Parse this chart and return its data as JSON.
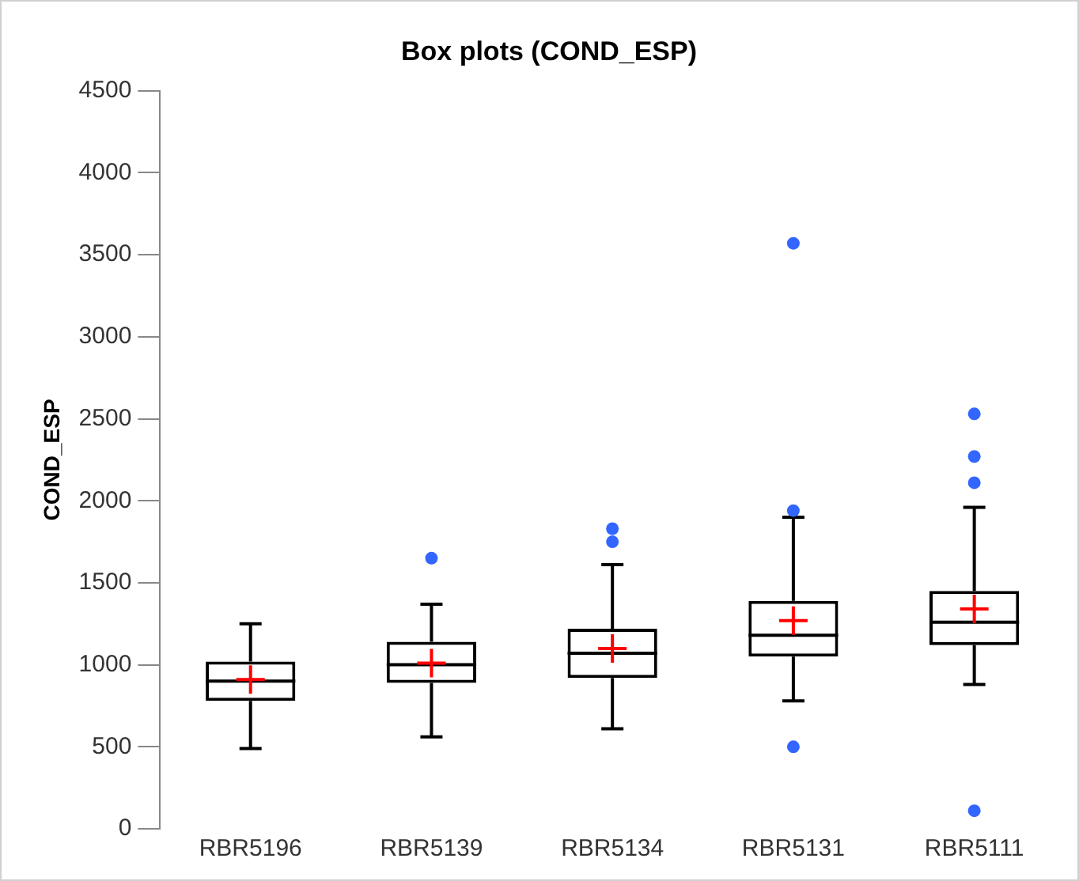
{
  "chart_data": {
    "type": "box",
    "title": "Box plots (COND_ESP)",
    "ylabel": "COND_ESP",
    "categories": [
      "RBR5196",
      "RBR5139",
      "RBR5134",
      "RBR5131",
      "RBR5111"
    ],
    "boxes": [
      {
        "low": 490,
        "q1": 780,
        "median": 900,
        "q3": 1020,
        "high": 1250,
        "mean": 910
      },
      {
        "low": 560,
        "q1": 890,
        "median": 1000,
        "q3": 1140,
        "high": 1370,
        "mean": 1010,
        "outliers": [
          1650
        ]
      },
      {
        "low": 610,
        "q1": 920,
        "median": 1070,
        "q3": 1220,
        "high": 1610,
        "mean": 1100,
        "outliers": [
          1750,
          1830
        ]
      },
      {
        "low": 780,
        "q1": 1050,
        "median": 1180,
        "q3": 1390,
        "high": 1900,
        "mean": 1270,
        "outliers": [
          500,
          1940,
          3570
        ]
      },
      {
        "low": 880,
        "q1": 1120,
        "median": 1260,
        "q3": 1450,
        "high": 1960,
        "mean": 1340,
        "outliers": [
          110,
          2110,
          2270,
          2530
        ]
      }
    ],
    "ylim": [
      0,
      4500
    ],
    "yticks": [
      0,
      500,
      1000,
      1500,
      2000,
      2500,
      3000,
      3500,
      4000,
      4500
    ],
    "grid": false
  }
}
